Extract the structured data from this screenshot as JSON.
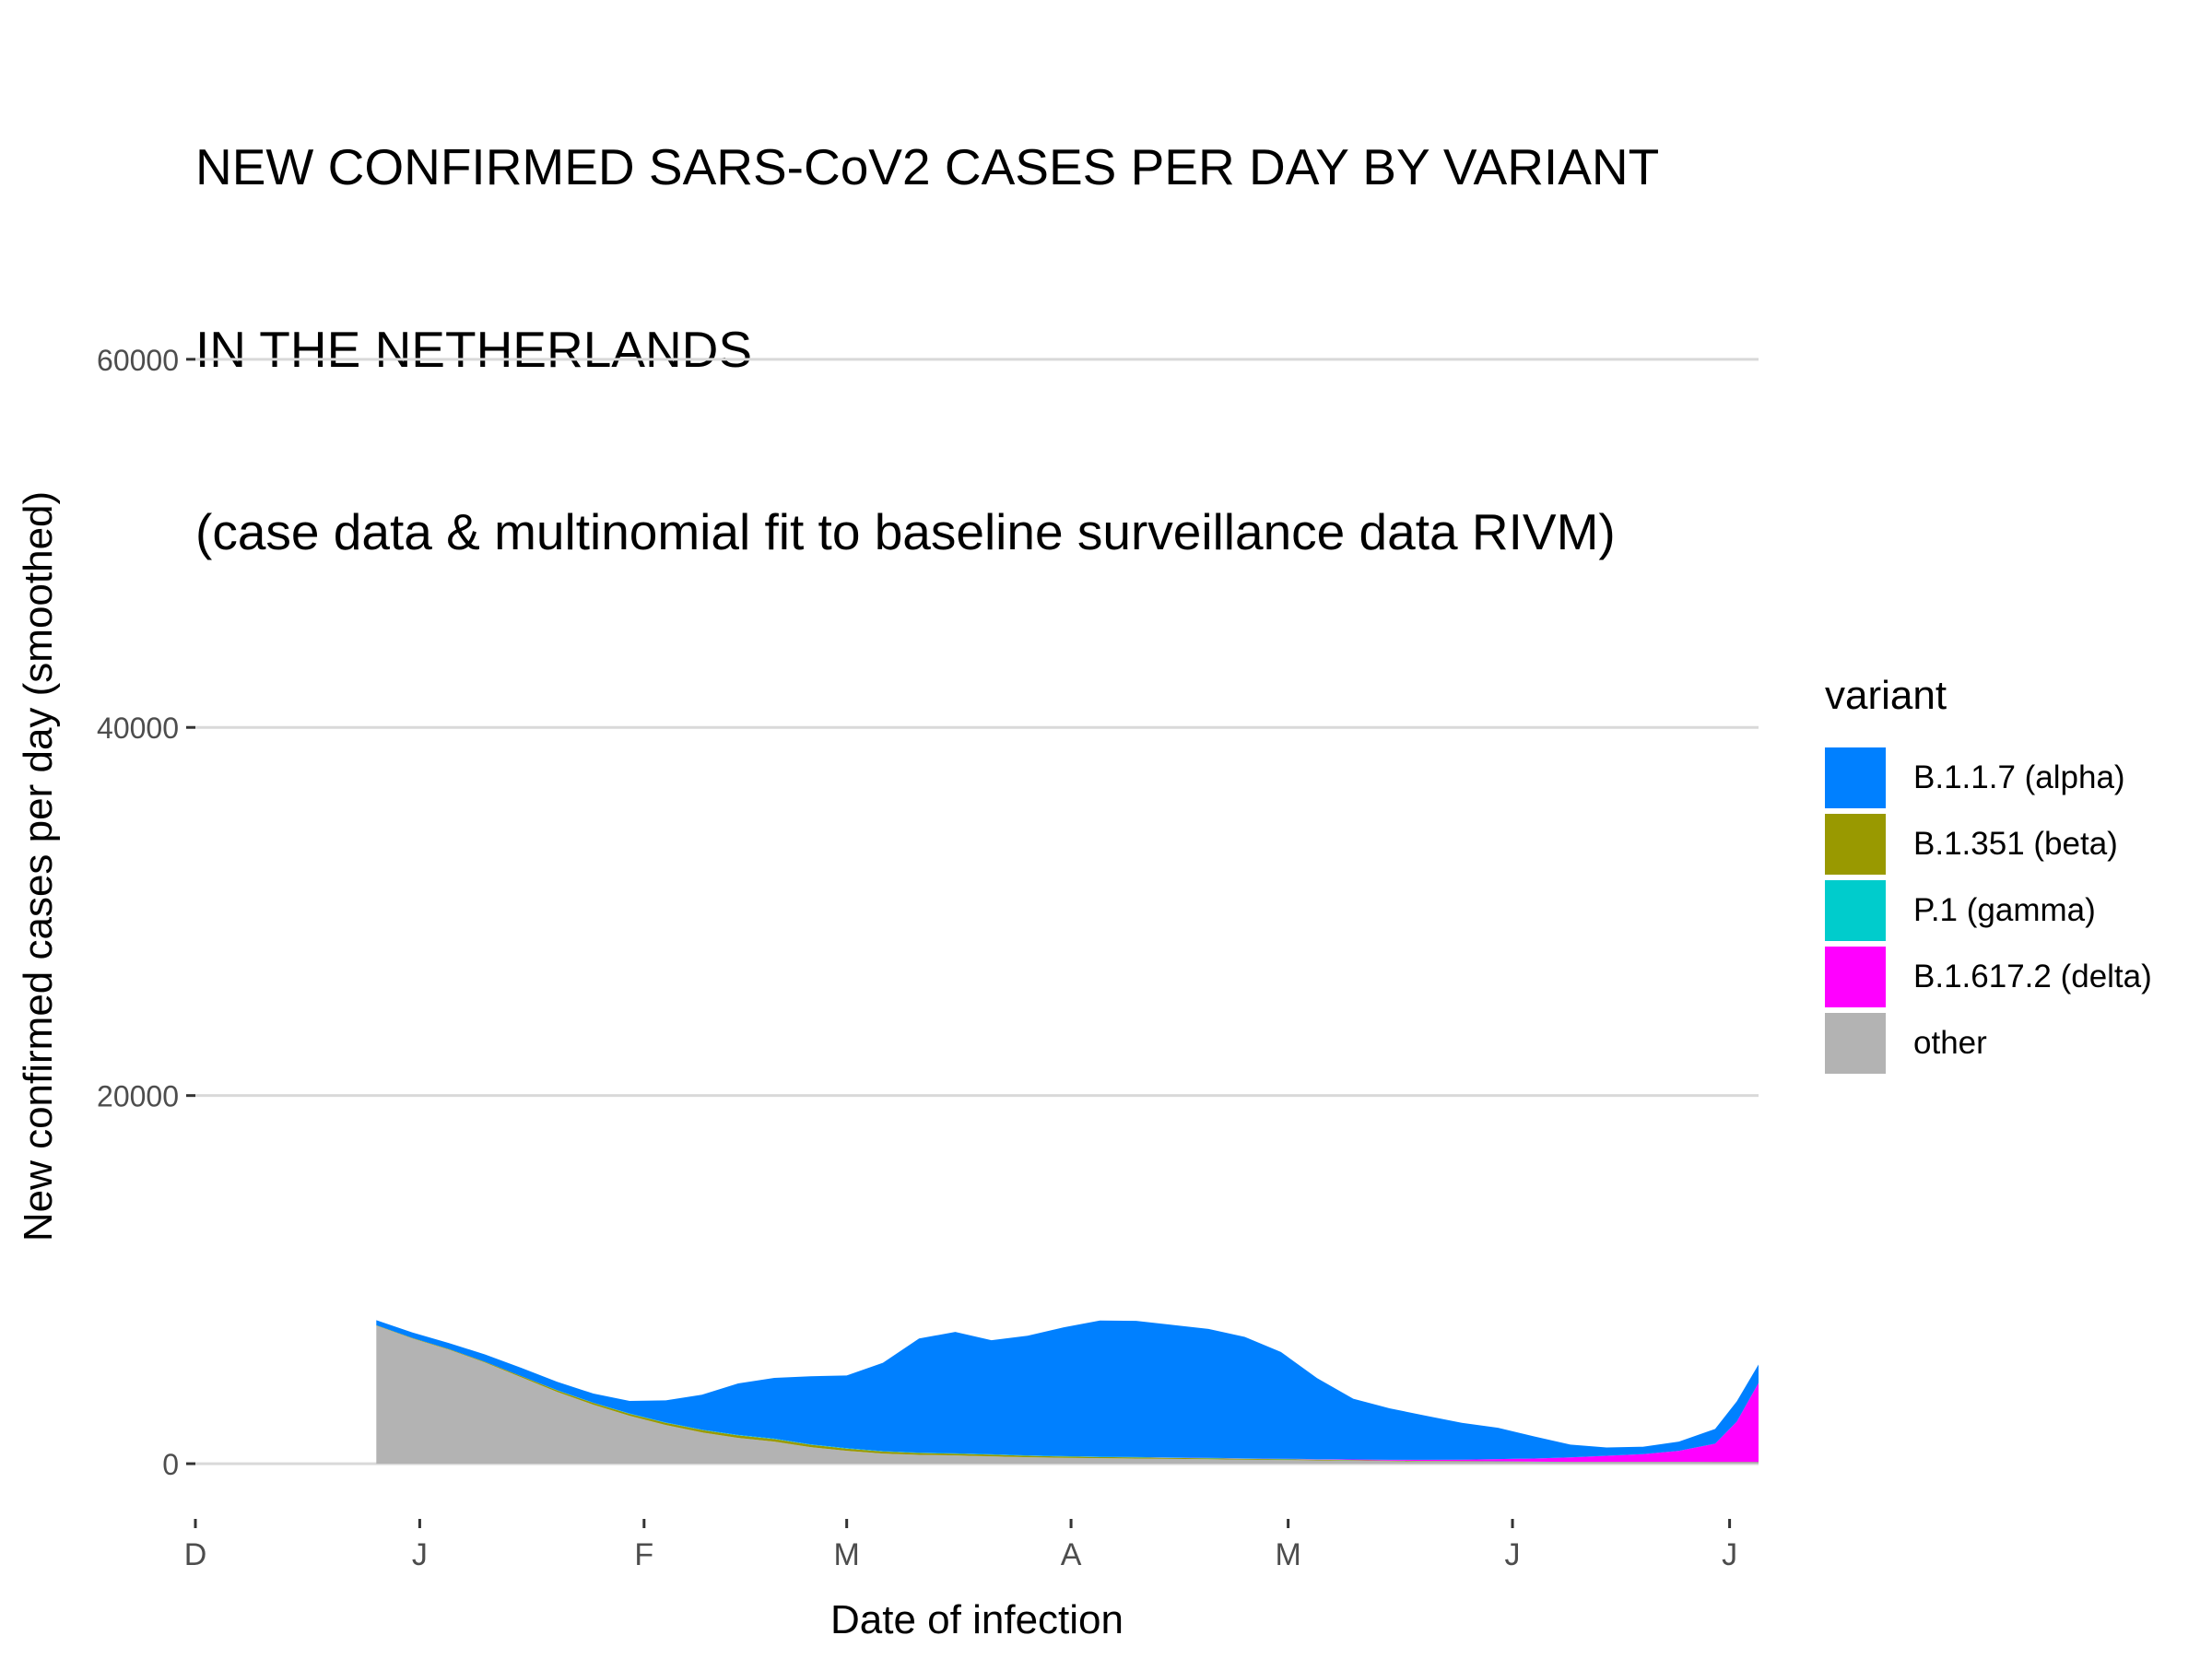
{
  "title_lines": [
    "NEW CONFIRMED SARS-CoV2 CASES PER DAY BY VARIANT",
    "IN THE NETHERLANDS",
    "(case data & multinomial fit to baseline surveillance data RIVM)"
  ],
  "chart_data": {
    "type": "area",
    "title": "NEW CONFIRMED SARS-CoV2 CASES PER DAY BY VARIANT IN THE NETHERLANDS (case data & multinomial fit to baseline surveillance data RIVM)",
    "xlabel": "Date of infection",
    "ylabel": "New confirmed cases per day (smoothed)",
    "stacked": true,
    "grid": "horizontal major",
    "legend_position": "right",
    "legend_title": "variant",
    "ylim": [
      -3000,
      66000
    ],
    "xlim": [
      0,
      216
    ],
    "x_unit": "days since first tick (D)",
    "x_ticks": [
      {
        "x": 0,
        "label": "D"
      },
      {
        "x": 31,
        "label": "J"
      },
      {
        "x": 62,
        "label": "F"
      },
      {
        "x": 90,
        "label": "M"
      },
      {
        "x": 121,
        "label": "A"
      },
      {
        "x": 151,
        "label": "M"
      },
      {
        "x": 182,
        "label": "J"
      },
      {
        "x": 212,
        "label": "J"
      }
    ],
    "y_ticks": [
      0,
      20000,
      40000,
      60000
    ],
    "x": [
      25,
      30,
      35,
      40,
      45,
      50,
      55,
      60,
      65,
      70,
      75,
      80,
      85,
      90,
      95,
      100,
      105,
      110,
      115,
      120,
      125,
      130,
      135,
      140,
      145,
      150,
      155,
      160,
      165,
      170,
      175,
      180,
      185,
      190,
      195,
      200,
      205,
      210,
      213,
      216
    ],
    "series": [
      {
        "name": "other",
        "color": "#b3b3b3",
        "values": [
          7500,
          6800,
          6200,
          5500,
          4700,
          3900,
          3200,
          2600,
          2100,
          1700,
          1400,
          1200,
          900,
          700,
          550,
          480,
          450,
          400,
          350,
          320,
          300,
          280,
          260,
          240,
          220,
          200,
          180,
          160,
          140,
          120,
          110,
          100,
          90,
          80,
          80,
          80,
          80,
          70,
          70,
          70
        ]
      },
      {
        "name": "B.1.351 (beta)",
        "color": "#999900",
        "values": [
          20,
          25,
          30,
          40,
          60,
          80,
          100,
          110,
          120,
          130,
          140,
          140,
          130,
          120,
          110,
          100,
          90,
          90,
          80,
          70,
          60,
          60,
          50,
          50,
          40,
          40,
          30,
          30,
          20,
          20,
          20,
          20,
          10,
          10,
          10,
          10,
          10,
          10,
          10,
          10
        ]
      },
      {
        "name": "P.1 (gamma)",
        "color": "#00cccc",
        "values": [
          0,
          0,
          0,
          0,
          0,
          10,
          10,
          20,
          20,
          20,
          20,
          20,
          20,
          20,
          20,
          20,
          20,
          20,
          20,
          20,
          20,
          20,
          20,
          20,
          20,
          20,
          20,
          10,
          10,
          10,
          10,
          10,
          10,
          10,
          10,
          10,
          10,
          10,
          10,
          10
        ]
      },
      {
        "name": "B.1.617.2 (delta)",
        "color": "#ff00ff",
        "values": [
          0,
          0,
          0,
          0,
          0,
          0,
          0,
          0,
          0,
          0,
          0,
          0,
          0,
          0,
          0,
          0,
          0,
          0,
          0,
          0,
          0,
          0,
          10,
          10,
          10,
          10,
          20,
          30,
          40,
          60,
          80,
          120,
          170,
          240,
          330,
          420,
          600,
          1000,
          2200,
          4300
        ]
      },
      {
        "name": "B.1.1.7 (alpha)",
        "color": "#0080ff",
        "values": [
          280,
          300,
          330,
          400,
          450,
          460,
          500,
          680,
          1200,
          1900,
          2800,
          3300,
          3700,
          3950,
          4800,
          6200,
          6600,
          6200,
          6500,
          7000,
          7400,
          7400,
          7200,
          7000,
          6600,
          5800,
          4400,
          3300,
          2800,
          2400,
          2000,
          1700,
          1200,
          700,
          450,
          400,
          500,
          800,
          1100,
          1000
        ]
      }
    ]
  },
  "legend": {
    "title": "variant",
    "items": [
      {
        "label": "B.1.1.7 (alpha)",
        "color": "#0080ff"
      },
      {
        "label": "B.1.351 (beta)",
        "color": "#999900"
      },
      {
        "label": "P.1 (gamma)",
        "color": "#00cccc"
      },
      {
        "label": "B.1.617.2 (delta)",
        "color": "#ff00ff"
      },
      {
        "label": "other",
        "color": "#b3b3b3"
      }
    ]
  }
}
